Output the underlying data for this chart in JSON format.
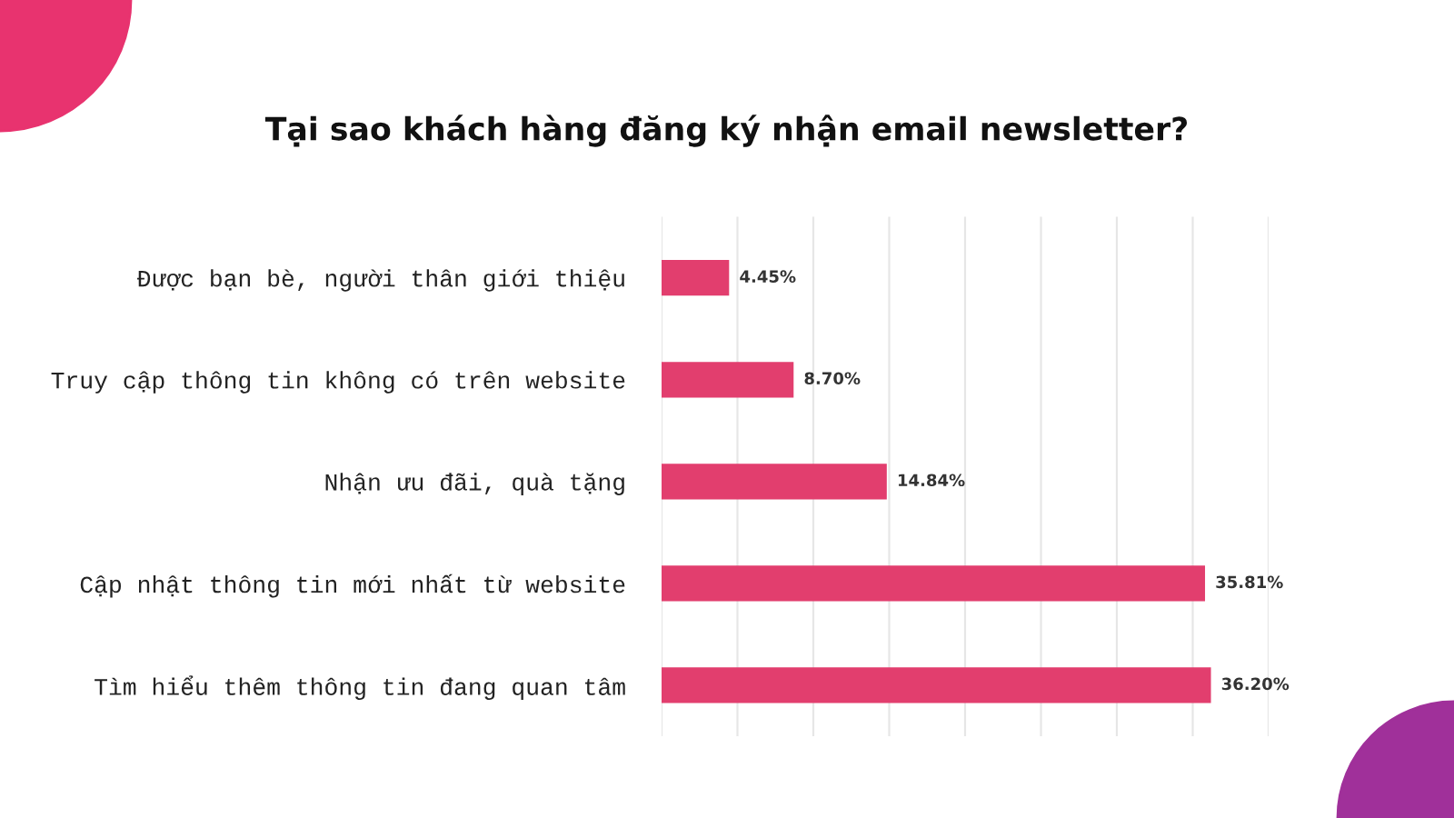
{
  "chart_data": {
    "type": "bar",
    "orientation": "horizontal",
    "title": "Tại sao khách hàng đăng ký nhận email newsletter?",
    "categories": [
      "Được bạn bè, người thân giới thiệu",
      "Truy cập thông tin không có trên website",
      "Nhận ưu đãi, quà tặng",
      "Cập nhật thông tin mới nhất từ website",
      "Tìm hiểu thêm thông tin đang quan tâm"
    ],
    "values": [
      4.45,
      8.7,
      14.84,
      35.81,
      36.2
    ],
    "value_labels": [
      "4.45%",
      "8.70%",
      "14.84%",
      "35.81%",
      "36.20%"
    ],
    "color": "#e23e6e",
    "xlim": [
      0,
      40
    ],
    "xticks": [
      {
        "value": 0,
        "label": null
      },
      {
        "value": 5,
        "label": null
      },
      {
        "value": 10,
        "label": null
      },
      {
        "value": 15,
        "label": null
      },
      {
        "value": 20,
        "label": null
      },
      {
        "value": 25,
        "label": null
      },
      {
        "value": 30,
        "label": null
      },
      {
        "value": 35,
        "label": null
      },
      {
        "value": 40,
        "label": null
      }
    ],
    "tick_labels": "y",
    "grid": "x",
    "legend": false
  }
}
